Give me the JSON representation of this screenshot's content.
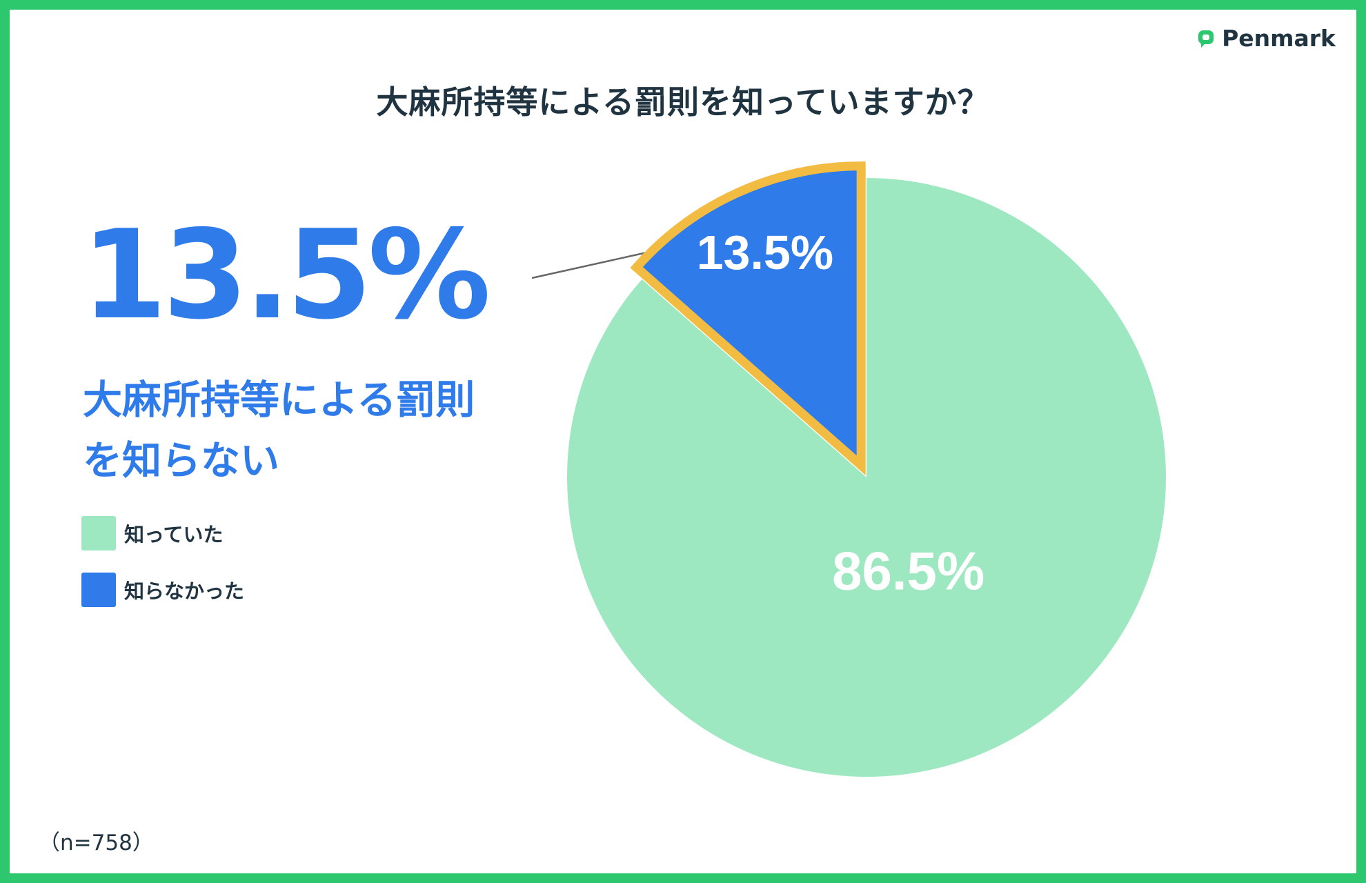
{
  "brand": {
    "name": "Penmark"
  },
  "title": "大麻所持等による罰則を知っていますか？",
  "highlight": {
    "value": "13.5%",
    "text_line1": "大麻所持等による罰則",
    "text_line2": "を知らない"
  },
  "note": "（n=758）",
  "colors": {
    "border": "#2dc76d",
    "known": "#9de8c0",
    "unknown": "#2f7bea",
    "highlight_outline": "#f2bc43",
    "text_dark": "#1f3340"
  },
  "chart_data": {
    "type": "pie",
    "title": "大麻所持等による罰則を知っていますか？",
    "slices": [
      {
        "label": "知っていた",
        "value": 86.5,
        "display": "86.5%",
        "color": "#9de8c0"
      },
      {
        "label": "知らなかった",
        "value": 13.5,
        "display": "13.5%",
        "color": "#2f7bea"
      }
    ],
    "highlighted_slice": "知らなかった",
    "legend_position": "left"
  }
}
